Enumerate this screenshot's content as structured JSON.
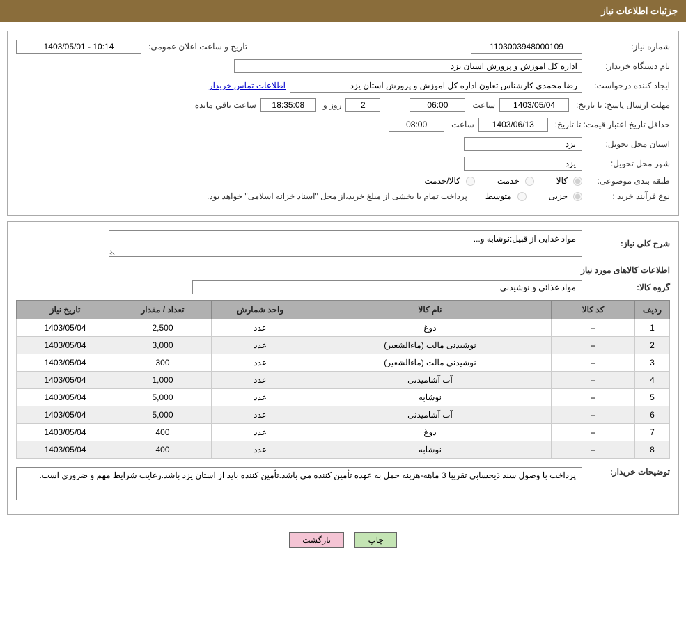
{
  "header": {
    "title": "جزئیات اطلاعات نیاز"
  },
  "form": {
    "need_number_label": "شماره نیاز:",
    "need_number": "1103003948000109",
    "announce_datetime_label": "تاریخ و ساعت اعلان عمومی:",
    "announce_datetime": "10:14 - 1403/05/01",
    "buyer_org_label": "نام دستگاه خریدار:",
    "buyer_org": "اداره کل اموزش و پرورش استان یزد",
    "requester_label": "ایجاد کننده درخواست:",
    "requester": "رضا محمدی کارشناس تعاون اداره کل اموزش و پرورش استان یزد",
    "contact_link": "اطلاعات تماس خریدار",
    "reply_deadline_label": "مهلت ارسال پاسخ: تا تاریخ:",
    "reply_deadline_date": "1403/05/04",
    "reply_deadline_time_label": "ساعت",
    "reply_deadline_time": "06:00",
    "remaining_days": "2",
    "remaining_days_label": "روز و",
    "remaining_time": "18:35:08",
    "remaining_time_label": "ساعت باقي مانده",
    "price_validity_label": "حداقل تاریخ اعتبار قیمت: تا تاریخ:",
    "price_validity_date": "1403/06/13",
    "price_validity_time_label": "ساعت",
    "price_validity_time": "08:00",
    "delivery_province_label": "استان محل تحویل:",
    "delivery_province": "یزد",
    "delivery_city_label": "شهر محل تحویل:",
    "delivery_city": "یزد",
    "category_label": "طبقه بندی موضوعی:",
    "category_options": {
      "goods": "کالا",
      "service": "خدمت",
      "goods_service": "کالا/خدمت"
    },
    "process_type_label": "نوع فرآیند خرید :",
    "process_options": {
      "partial": "جزیی",
      "medium": "متوسط"
    },
    "process_note": "پرداخت تمام یا بخشی از مبلغ خرید،از محل \"اسناد خزانه اسلامی\" خواهد بود."
  },
  "need": {
    "summary_label": "شرح کلی نیاز:",
    "summary": "مواد غذایی از قبیل:نوشابه و...",
    "items_title": "اطلاعات کالاهای مورد نیاز",
    "group_label": "گروه کالا:",
    "group": "مواد غذائی و نوشیدنی"
  },
  "table": {
    "columns": {
      "row": "ردیف",
      "code": "کد کالا",
      "name": "نام کالا",
      "unit": "واحد شمارش",
      "qty": "تعداد / مقدار",
      "date": "تاریخ نیاز"
    },
    "rows": [
      {
        "row": "1",
        "code": "--",
        "name": "دوغ",
        "unit": "عدد",
        "qty": "2,500",
        "date": "1403/05/04"
      },
      {
        "row": "2",
        "code": "--",
        "name": "نوشیدنی مالت (ماءالشعیر)",
        "unit": "عدد",
        "qty": "3,000",
        "date": "1403/05/04"
      },
      {
        "row": "3",
        "code": "--",
        "name": "نوشیدنی مالت (ماءالشعیر)",
        "unit": "عدد",
        "qty": "300",
        "date": "1403/05/04"
      },
      {
        "row": "4",
        "code": "--",
        "name": "آب آشامیدنی",
        "unit": "عدد",
        "qty": "1,000",
        "date": "1403/05/04"
      },
      {
        "row": "5",
        "code": "--",
        "name": "نوشابه",
        "unit": "عدد",
        "qty": "5,000",
        "date": "1403/05/04"
      },
      {
        "row": "6",
        "code": "--",
        "name": "آب آشامیدنی",
        "unit": "عدد",
        "qty": "5,000",
        "date": "1403/05/04"
      },
      {
        "row": "7",
        "code": "--",
        "name": "دوغ",
        "unit": "عدد",
        "qty": "400",
        "date": "1403/05/04"
      },
      {
        "row": "8",
        "code": "--",
        "name": "نوشابه",
        "unit": "عدد",
        "qty": "400",
        "date": "1403/05/04"
      }
    ]
  },
  "buyer_notes": {
    "label": "توضیحات خریدار:",
    "text": "پرداخت با وصول سند ذیحسابی تقریبا 3 ماهه-هزینه حمل به عهده تأمین کننده می باشد.تأمین کننده باید از استان یزد باشد.رعایت شرایط مهم و ضروری است."
  },
  "buttons": {
    "print": "چاپ",
    "back": "بازگشت"
  },
  "styling": {
    "header_bg": "#8a6d3b",
    "header_text": "#ffffff",
    "border_color": "#aaaaaa",
    "field_border": "#888888",
    "table_header_bg": "#b0b0b0",
    "table_row_alt_bg": "#eeeeee",
    "link_color": "#0000cc",
    "btn_print_bg": "#c4e4b4",
    "btn_back_bg": "#f4c4d4"
  }
}
